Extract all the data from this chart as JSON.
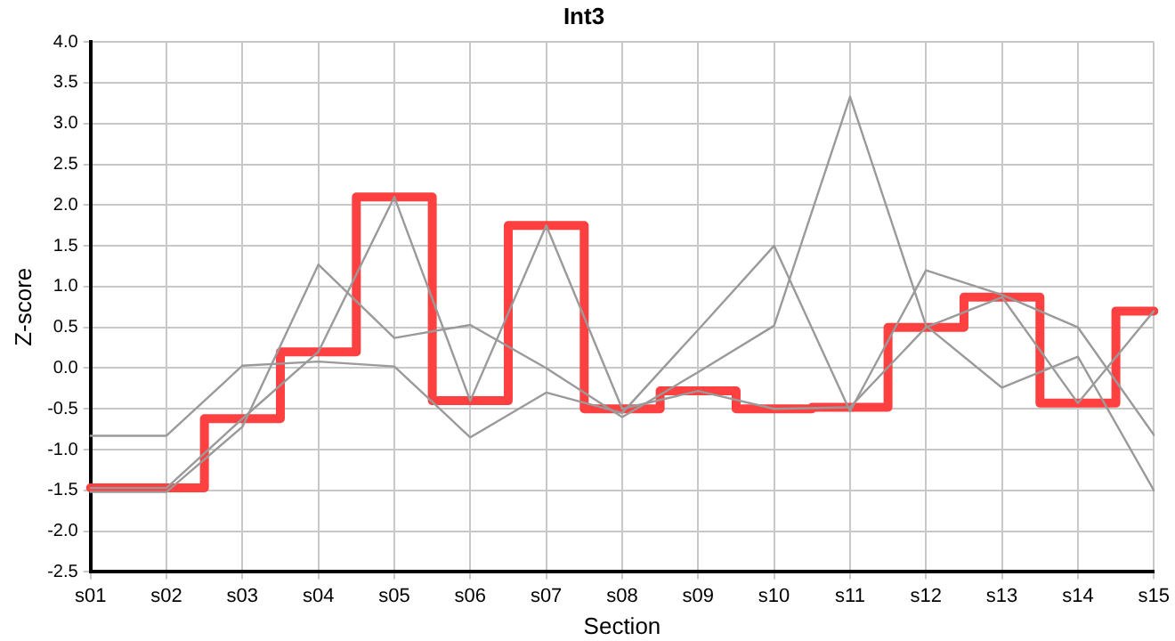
{
  "chart_data": {
    "type": "line",
    "title": "Int3",
    "xlabel": "Section",
    "ylabel": "Z-score",
    "categories": [
      "s01",
      "s02",
      "s03",
      "s04",
      "s05",
      "s06",
      "s07",
      "s08",
      "s09",
      "s10",
      "s11",
      "s12",
      "s13",
      "s14",
      "s15"
    ],
    "series": [
      {
        "type": "line",
        "color": "#9a9a9a",
        "values": [
          -0.83,
          -0.83,
          0.03,
          0.08,
          0.02,
          -0.85,
          -0.3,
          -0.55,
          0.47,
          1.5,
          -0.53,
          1.2,
          0.9,
          0.5,
          -0.82
        ]
      },
      {
        "type": "line",
        "color": "#9a9a9a",
        "values": [
          -1.52,
          -1.52,
          -0.72,
          1.27,
          0.37,
          0.53,
          0.0,
          -0.6,
          -0.05,
          0.52,
          3.33,
          0.52,
          -0.24,
          0.14,
          -1.5
        ]
      },
      {
        "type": "line",
        "color": "#9a9a9a",
        "values": [
          -1.47,
          -1.47,
          -0.62,
          0.2,
          2.1,
          -0.4,
          1.75,
          -0.5,
          -0.28,
          -0.5,
          -0.48,
          0.5,
          0.87,
          -0.43,
          0.7
        ]
      },
      {
        "type": "step",
        "color": "#ff4040",
        "values": [
          -1.47,
          -1.47,
          -0.62,
          0.2,
          2.1,
          -0.4,
          1.75,
          -0.5,
          -0.28,
          -0.5,
          -0.48,
          0.5,
          0.87,
          -0.43,
          0.7
        ]
      }
    ],
    "ylim": [
      -2.5,
      4
    ],
    "yticks": [
      {
        "value": -2.5,
        "label": "-2.5"
      },
      {
        "value": -2,
        "label": "-2.0"
      },
      {
        "value": -1.5,
        "label": "-1.5"
      },
      {
        "value": -1,
        "label": "-1.0"
      },
      {
        "value": -0.5,
        "label": "-0.5"
      },
      {
        "value": 0,
        "label": "0.0"
      },
      {
        "value": 0.5,
        "label": "0.5"
      },
      {
        "value": 1,
        "label": "1.0"
      },
      {
        "value": 1.5,
        "label": "1.5"
      },
      {
        "value": 2,
        "label": "2.0"
      },
      {
        "value": 2.5,
        "label": "2.5"
      },
      {
        "value": 3,
        "label": "3.0"
      },
      {
        "value": 3.5,
        "label": "3.5"
      },
      {
        "value": 4,
        "label": "4.0"
      }
    ],
    "grid": true,
    "legend": false,
    "marker": "none",
    "line_style": "solid"
  }
}
